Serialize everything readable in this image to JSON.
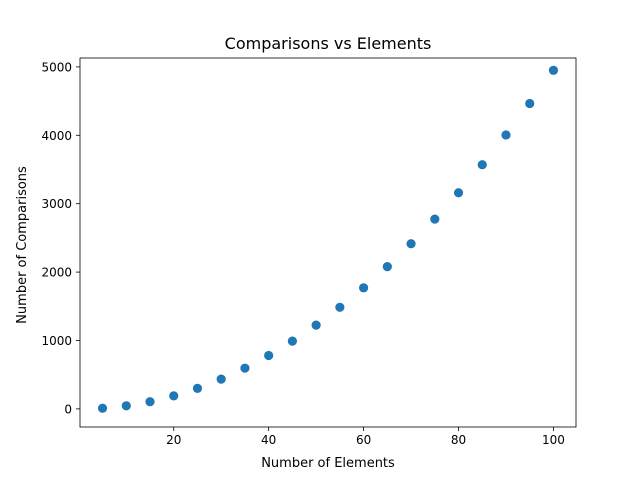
{
  "chart_data": {
    "type": "scatter",
    "title": "Comparisons vs Elements",
    "xlabel": "Number of Elements",
    "ylabel": "Number of Comparisons",
    "xlim": [
      0.25,
      104.75
    ],
    "ylim": [
      -265,
      5130
    ],
    "xticks": [
      20,
      40,
      60,
      80,
      100
    ],
    "yticks": [
      0,
      1000,
      2000,
      3000,
      4000,
      5000
    ],
    "grid": false,
    "legend": "none",
    "series": [
      {
        "color": "#1f77b4",
        "x": [
          5,
          10,
          15,
          20,
          25,
          30,
          35,
          40,
          45,
          50,
          55,
          60,
          65,
          70,
          75,
          80,
          85,
          90,
          95,
          100
        ],
        "y": [
          10,
          45,
          105,
          190,
          300,
          435,
          595,
          780,
          990,
          1225,
          1485,
          1770,
          2080,
          2415,
          2775,
          3160,
          3570,
          4005,
          4465,
          4950
        ]
      }
    ]
  }
}
